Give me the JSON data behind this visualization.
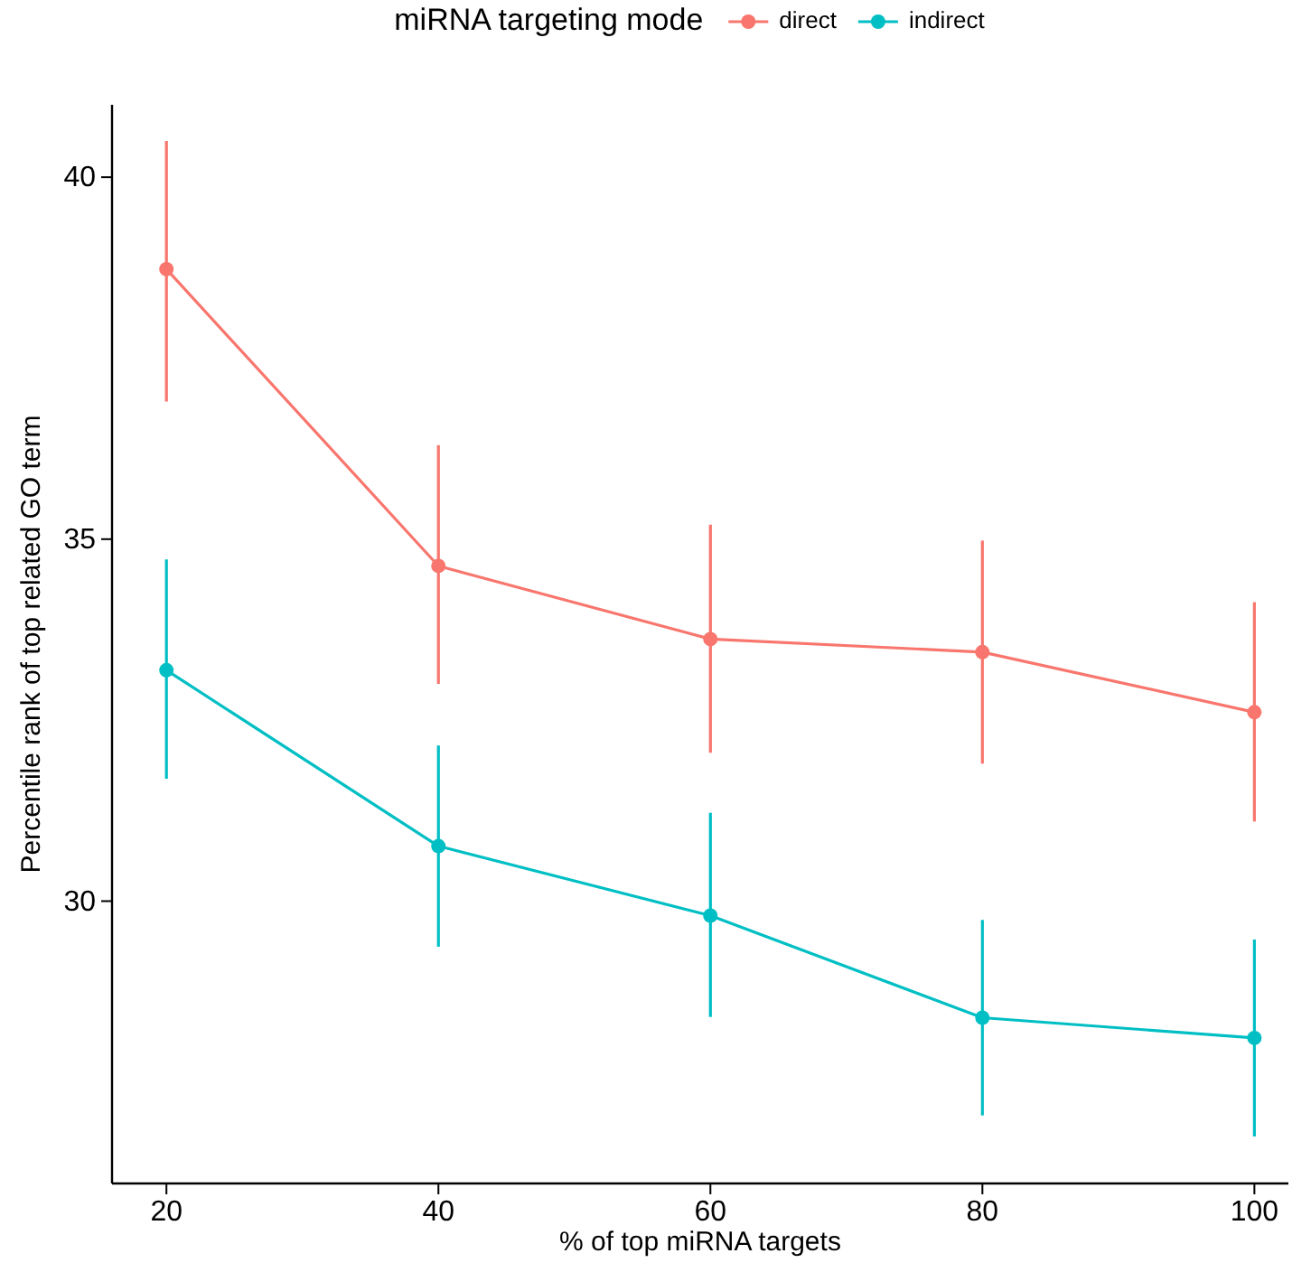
{
  "chart_data": {
    "type": "line",
    "xlabel": "% of top miRNA targets",
    "ylabel": "Percentile rank of top related GO term",
    "legend_title": "miRNA targeting mode",
    "legend": "top",
    "marker": "circle",
    "line_style": "solid",
    "grid": false,
    "x": [
      20,
      40,
      60,
      80,
      100
    ],
    "xlim": [
      16,
      102.5
    ],
    "xticks": [
      20,
      40,
      60,
      80,
      100
    ],
    "ylim": [
      26.1,
      41
    ],
    "yticks": [
      30,
      35,
      40
    ],
    "series": [
      {
        "name": "direct",
        "color": "#f8766d",
        "values": [
          38.73,
          34.63,
          33.62,
          33.44,
          32.61
        ],
        "errors": [
          [
            36.9,
            40.5
          ],
          [
            33.0,
            36.3
          ],
          [
            32.05,
            35.2
          ],
          [
            31.9,
            34.98
          ],
          [
            31.1,
            34.13
          ]
        ]
      },
      {
        "name": "indirect",
        "color": "#00bfc4",
        "values": [
          33.19,
          30.76,
          29.8,
          28.39,
          28.11
        ],
        "errors": [
          [
            31.69,
            34.72
          ],
          [
            29.37,
            32.15
          ],
          [
            28.4,
            31.22
          ],
          [
            27.04,
            29.74
          ],
          [
            26.75,
            29.47
          ]
        ]
      }
    ]
  }
}
